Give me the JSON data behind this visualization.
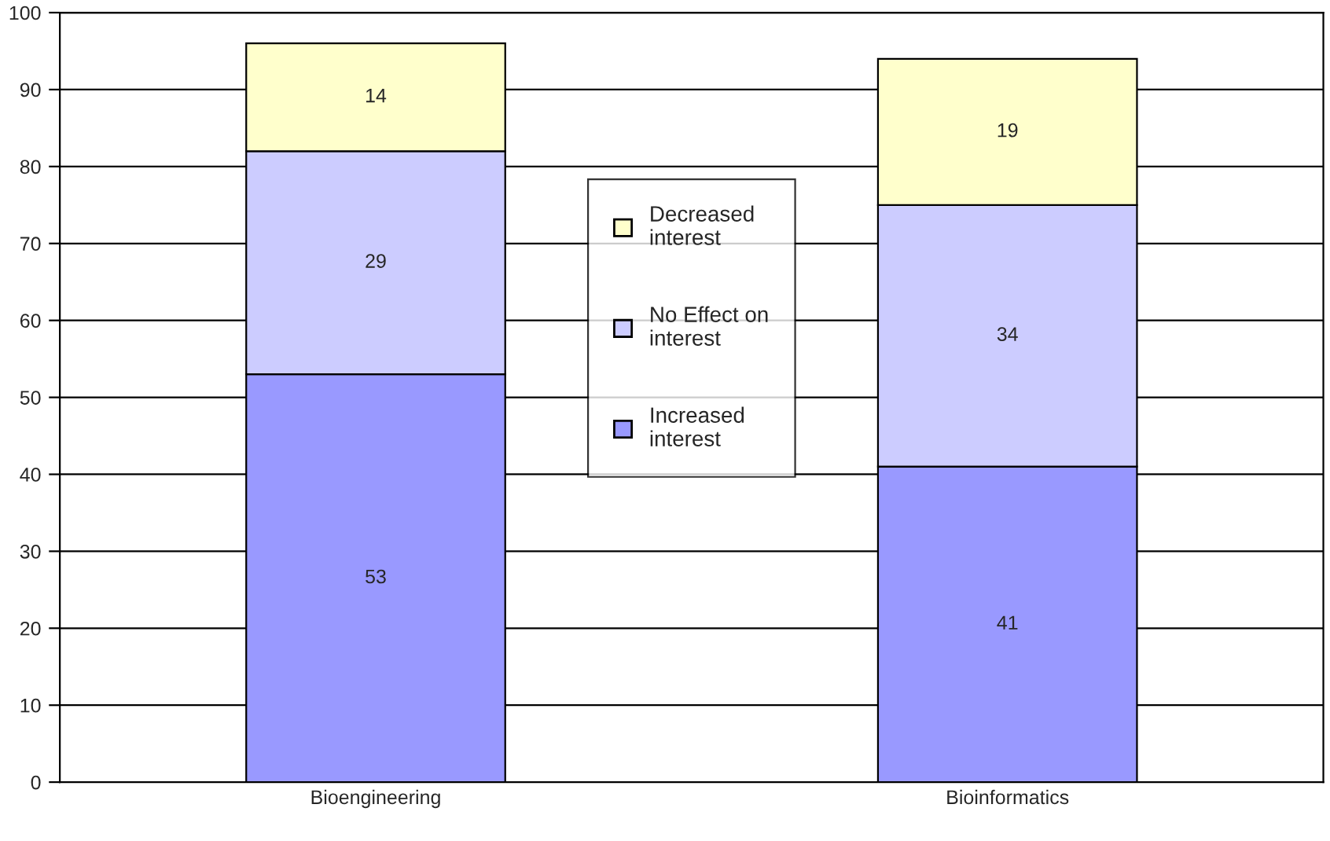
{
  "chart_data": {
    "type": "bar",
    "stacked": true,
    "categories": [
      "Bioengineering",
      "Bioinformatics"
    ],
    "series": [
      {
        "name": "Increased interest",
        "color": "#9999ff",
        "values": [
          53,
          41
        ]
      },
      {
        "name": "No Effect on interest",
        "color": "#ccccff",
        "values": [
          29,
          34
        ]
      },
      {
        "name": "Decreased interest",
        "color": "#ffffcc",
        "values": [
          14,
          19
        ]
      }
    ],
    "ylim": [
      0,
      100
    ],
    "yticks": [
      0,
      10,
      20,
      30,
      40,
      50,
      60,
      70,
      80,
      90,
      100
    ],
    "grid": "y",
    "legend": "center",
    "data_labels": true
  }
}
